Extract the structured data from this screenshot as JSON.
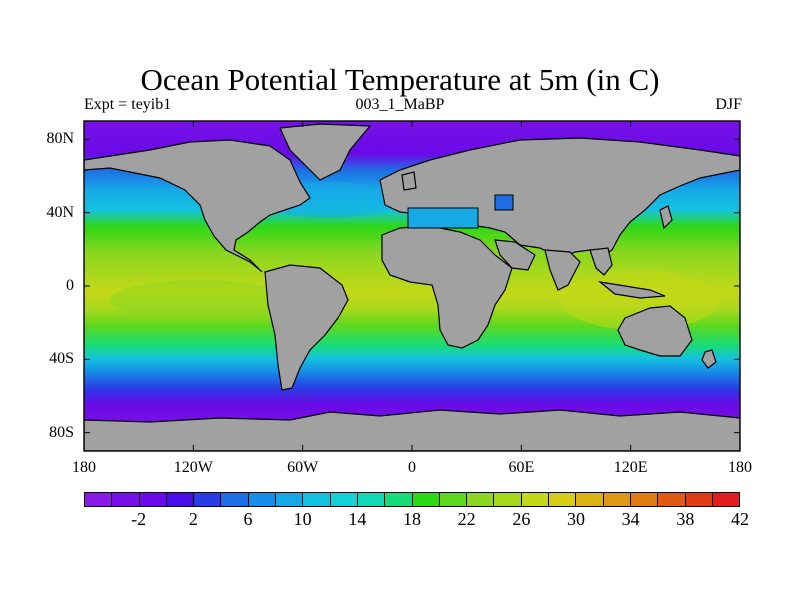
{
  "title": "Ocean Potential Temperature at 5m (in C)",
  "subtitle_left": "Expt = teyib1",
  "subtitle_center": "003_1_MaBP",
  "subtitle_right": "DJF",
  "chart_data": {
    "type": "heatmap",
    "variable": "Ocean Potential Temperature at 5m",
    "units": "C",
    "experiment": "teyib1",
    "period": "003_1_MaBP",
    "season": "DJF",
    "lon_range": [
      -180,
      180
    ],
    "lat_range": [
      -90,
      90
    ],
    "x_ticks": [
      {
        "value": -180,
        "label": "180"
      },
      {
        "value": -120,
        "label": "120W"
      },
      {
        "value": -60,
        "label": "60W"
      },
      {
        "value": 0,
        "label": "0"
      },
      {
        "value": 60,
        "label": "60E"
      },
      {
        "value": 120,
        "label": "120E"
      },
      {
        "value": 180,
        "label": "180"
      }
    ],
    "y_ticks": [
      {
        "value": 80,
        "label": "80N"
      },
      {
        "value": 40,
        "label": "40N"
      },
      {
        "value": 0,
        "label": "0"
      },
      {
        "value": -40,
        "label": "40S"
      },
      {
        "value": -80,
        "label": "80S"
      }
    ],
    "colorbar": {
      "levels": [
        -4,
        -2,
        0,
        2,
        4,
        6,
        8,
        10,
        12,
        14,
        16,
        18,
        20,
        22,
        24,
        26,
        28,
        30,
        32,
        34,
        36,
        38,
        40,
        42,
        44
      ],
      "labeled_levels": [
        "-2",
        "2",
        "6",
        "10",
        "14",
        "18",
        "22",
        "26",
        "30",
        "34",
        "38",
        "42"
      ],
      "colors": [
        "#8a1ae6",
        "#7612e8",
        "#6a0ae6",
        "#4a0de8",
        "#2a3ce6",
        "#1e6fe6",
        "#168de6",
        "#16a9e6",
        "#14c2e0",
        "#12d2d8",
        "#12d8b8",
        "#16dc78",
        "#2ed816",
        "#5ed81e",
        "#8ad620",
        "#a8d81c",
        "#c4d818",
        "#d8cc14",
        "#dab414",
        "#dc9a14",
        "#e07c14",
        "#e05a14",
        "#e03c14",
        "#e01e1e"
      ]
    },
    "zonal_profile_degC": [
      {
        "lat": 80,
        "value": -1.8
      },
      {
        "lat": 60,
        "value": 4
      },
      {
        "lat": 50,
        "value": 9
      },
      {
        "lat": 40,
        "value": 15
      },
      {
        "lat": 30,
        "value": 21
      },
      {
        "lat": 20,
        "value": 25
      },
      {
        "lat": 10,
        "value": 27
      },
      {
        "lat": 0,
        "value": 28
      },
      {
        "lat": -10,
        "value": 28
      },
      {
        "lat": -20,
        "value": 27
      },
      {
        "lat": -30,
        "value": 23
      },
      {
        "lat": -40,
        "value": 16
      },
      {
        "lat": -50,
        "value": 8
      },
      {
        "lat": -60,
        "value": 1
      },
      {
        "lat": -70,
        "value": -1.8
      },
      {
        "lat": -80,
        "value": -1.8
      }
    ]
  }
}
